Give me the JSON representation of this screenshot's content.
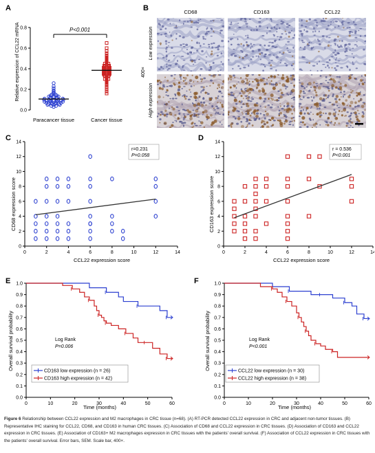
{
  "panelA": {
    "letter": "A",
    "ylabel": "Relative expression of CCL22 mRNA",
    "pvalue": "P<0.001",
    "ticks": [
      "0.0",
      "0.2",
      "0.4",
      "0.6",
      "0.8"
    ],
    "groups": [
      "Paracancer tissue",
      "Cancer tissue"
    ]
  },
  "panelB": {
    "letter": "B",
    "cols": [
      "CD68",
      "CD163",
      "CCL22"
    ],
    "rows": [
      "Low expression",
      "High expression"
    ],
    "mag": "400×"
  },
  "panelC": {
    "letter": "C",
    "r": "r=0.231",
    "p": "P=0.058",
    "xlabel": "CCL22 expression score",
    "ylabel": "CD68 expression score"
  },
  "panelD": {
    "letter": "D",
    "r": "r = 0.536",
    "p": "P<0.001",
    "xlabel": "CCL22 expression score",
    "ylabel": "CD163 expression score"
  },
  "panelE": {
    "letter": "E",
    "xlabel": "Time (months)",
    "ylabel": "Overall survival probability",
    "logrank": "Log Rank",
    "p": "P=0.006",
    "legend_low": "CD163 low expression (n = 26)",
    "legend_high": "CD163 high expression (n = 42)"
  },
  "panelF": {
    "letter": "F",
    "xlabel": "Time (months)",
    "ylabel": "Overall  survival probability",
    "logrank": "Log Rank",
    "p": "P<0.001",
    "legend_low": "CCL22 low expression (n = 30)",
    "legend_high": "CCL22 high expression (n = 38)"
  },
  "caption": {
    "label": "Figure 6",
    "text": "Relationship between CCL22 expression and M2 macrophages in CRC tissue (n=68). (A) RT-PCR detected CCL22 expression in CRC and adjacent non-tumor tissues. (B) Representative IHC staining for CCL22, CD68, and CD163 in human CRC tissues. (C) Association of CD68 and CCL22 expression in CRC tissues. (D) Association of CD163 and CCL22 expression in CRC tissues. (E) Association of CD163+ M2 macrophages expression in CRC tissues with the patients' overall survival. (F) Association of CCL22 expression in CRC tissues with the patients' overall survival. Error bars, SEM. Scale bar, 400×."
  },
  "chart_data": [
    {
      "type": "scatter",
      "id": "A",
      "ylabel": "Relative expression of CCL22 mRNA",
      "ylim": [
        0,
        0.8
      ],
      "categories": [
        "Paracancer tissue",
        "Cancer tissue"
      ],
      "series": [
        {
          "name": "Paracancer tissue",
          "values": [
            0.26,
            0.23,
            0.21,
            0.19,
            0.18,
            0.17,
            0.16,
            0.15,
            0.15,
            0.14,
            0.14,
            0.13,
            0.13,
            0.13,
            0.12,
            0.12,
            0.12,
            0.11,
            0.11,
            0.11,
            0.11,
            0.1,
            0.1,
            0.1,
            0.1,
            0.1,
            0.09,
            0.09,
            0.09,
            0.09,
            0.09,
            0.08,
            0.08,
            0.08,
            0.08,
            0.07,
            0.07,
            0.07,
            0.07,
            0.06,
            0.06,
            0.06,
            0.06,
            0.05,
            0.05,
            0.05,
            0.04,
            0.04,
            0.03
          ]
        },
        {
          "name": "Cancer tissue",
          "values": [
            0.65,
            0.6,
            0.57,
            0.55,
            0.53,
            0.52,
            0.51,
            0.5,
            0.49,
            0.48,
            0.47,
            0.46,
            0.45,
            0.45,
            0.44,
            0.43,
            0.43,
            0.42,
            0.42,
            0.41,
            0.41,
            0.4,
            0.4,
            0.39,
            0.39,
            0.38,
            0.38,
            0.37,
            0.37,
            0.36,
            0.36,
            0.35,
            0.35,
            0.34,
            0.34,
            0.33,
            0.33,
            0.32,
            0.31,
            0.3,
            0.3,
            0.29,
            0.28,
            0.27,
            0.26,
            0.25,
            0.24,
            0.22,
            0.2,
            0.18,
            0.16
          ]
        }
      ],
      "annotations": [
        "P<0.001"
      ]
    },
    {
      "type": "scatter",
      "id": "C",
      "xlabel": "CCL22 expression score",
      "ylabel": "CD68 expression score",
      "xlim": [
        0,
        14
      ],
      "ylim": [
        0,
        14
      ],
      "x": [
        1,
        1,
        1,
        1,
        1,
        2,
        2,
        2,
        2,
        2,
        2,
        2,
        3,
        3,
        3,
        3,
        3,
        3,
        3,
        4,
        4,
        4,
        4,
        4,
        4,
        6,
        6,
        6,
        6,
        6,
        6,
        6,
        6,
        6,
        8,
        8,
        8,
        8,
        9,
        9,
        12,
        12,
        12,
        12
      ],
      "y": [
        1,
        2,
        3,
        4,
        6,
        1,
        2,
        3,
        4,
        6,
        8,
        9,
        1,
        2,
        3,
        4,
        6,
        8,
        9,
        1,
        2,
        3,
        6,
        8,
        9,
        1,
        2,
        3,
        4,
        6,
        8,
        9,
        12,
        3,
        2,
        3,
        4,
        9,
        1,
        2,
        4,
        6,
        8,
        9
      ],
      "trendline": {
        "x": [
          1,
          12
        ],
        "y": [
          4.2,
          6.3
        ]
      },
      "annotations": [
        "r=0.231",
        "P=0.058"
      ]
    },
    {
      "type": "scatter",
      "id": "D",
      "xlabel": "CCL22 expression score",
      "ylabel": "CD163 expression score",
      "xlim": [
        0,
        14
      ],
      "ylim": [
        0,
        14
      ],
      "x": [
        1,
        1,
        1,
        1,
        1,
        2,
        2,
        2,
        2,
        2,
        2,
        3,
        3,
        3,
        3,
        3,
        3,
        3,
        3,
        4,
        4,
        4,
        4,
        6,
        6,
        6,
        6,
        6,
        6,
        6,
        6,
        8,
        8,
        8,
        9,
        9,
        12,
        12,
        12
      ],
      "y": [
        2,
        3,
        4,
        5,
        6,
        1,
        2,
        3,
        4,
        6,
        8,
        1,
        2,
        4,
        5,
        6,
        7,
        8,
        9,
        3,
        6,
        8,
        9,
        3,
        4,
        6,
        8,
        9,
        12,
        2,
        1,
        4,
        9,
        12,
        8,
        12,
        6,
        8,
        9
      ],
      "trendline": {
        "x": [
          1,
          12
        ],
        "y": [
          3.8,
          9.6
        ]
      },
      "annotations": [
        "r = 0.536",
        "P<0.001"
      ]
    },
    {
      "type": "line",
      "id": "E",
      "xlabel": "Time (months)",
      "ylabel": "Overall survival probability",
      "xlim": [
        0,
        60
      ],
      "ylim": [
        0,
        1.0
      ],
      "series": [
        {
          "name": "CD163 low expression (n = 26)",
          "x": [
            0,
            26,
            33,
            38,
            40,
            46,
            52,
            55,
            58,
            60
          ],
          "y": [
            1.0,
            0.96,
            0.92,
            0.88,
            0.84,
            0.8,
            0.8,
            0.76,
            0.7,
            0.7
          ]
        },
        {
          "name": "CD163 high expression (n = 42)",
          "x": [
            0,
            15,
            19,
            22,
            24,
            26,
            28,
            29,
            30,
            31,
            32,
            33,
            35,
            38,
            41,
            44,
            46,
            49,
            52,
            55,
            58,
            60
          ],
          "y": [
            1.0,
            0.98,
            0.95,
            0.92,
            0.88,
            0.85,
            0.8,
            0.76,
            0.72,
            0.7,
            0.67,
            0.65,
            0.63,
            0.6,
            0.56,
            0.52,
            0.48,
            0.48,
            0.43,
            0.38,
            0.34,
            0.34
          ]
        }
      ],
      "annotations": [
        "Log Rank",
        "P=0.006"
      ]
    },
    {
      "type": "line",
      "id": "F",
      "xlabel": "Time (months)",
      "ylabel": "Overall  survival probability",
      "xlim": [
        0,
        60
      ],
      "ylim": [
        0,
        1.0
      ],
      "series": [
        {
          "name": "CCL22 low expression (n = 30)",
          "x": [
            0,
            20,
            27,
            30,
            36,
            40,
            45,
            48,
            50,
            53,
            55,
            58,
            60
          ],
          "y": [
            1.0,
            0.97,
            0.93,
            0.93,
            0.9,
            0.9,
            0.87,
            0.87,
            0.83,
            0.8,
            0.73,
            0.69,
            0.69
          ]
        },
        {
          "name": "CCL22 high expression (n = 38)",
          "x": [
            0,
            15,
            20,
            22,
            24,
            26,
            28,
            30,
            31,
            32,
            33,
            34,
            35,
            36,
            38,
            40,
            42,
            45,
            47,
            60
          ],
          "y": [
            1.0,
            0.97,
            0.95,
            0.92,
            0.88,
            0.84,
            0.8,
            0.74,
            0.7,
            0.66,
            0.62,
            0.58,
            0.54,
            0.5,
            0.47,
            0.45,
            0.42,
            0.4,
            0.35,
            0.35
          ]
        }
      ],
      "annotations": [
        "Log Rank",
        "P<0.001"
      ]
    }
  ]
}
